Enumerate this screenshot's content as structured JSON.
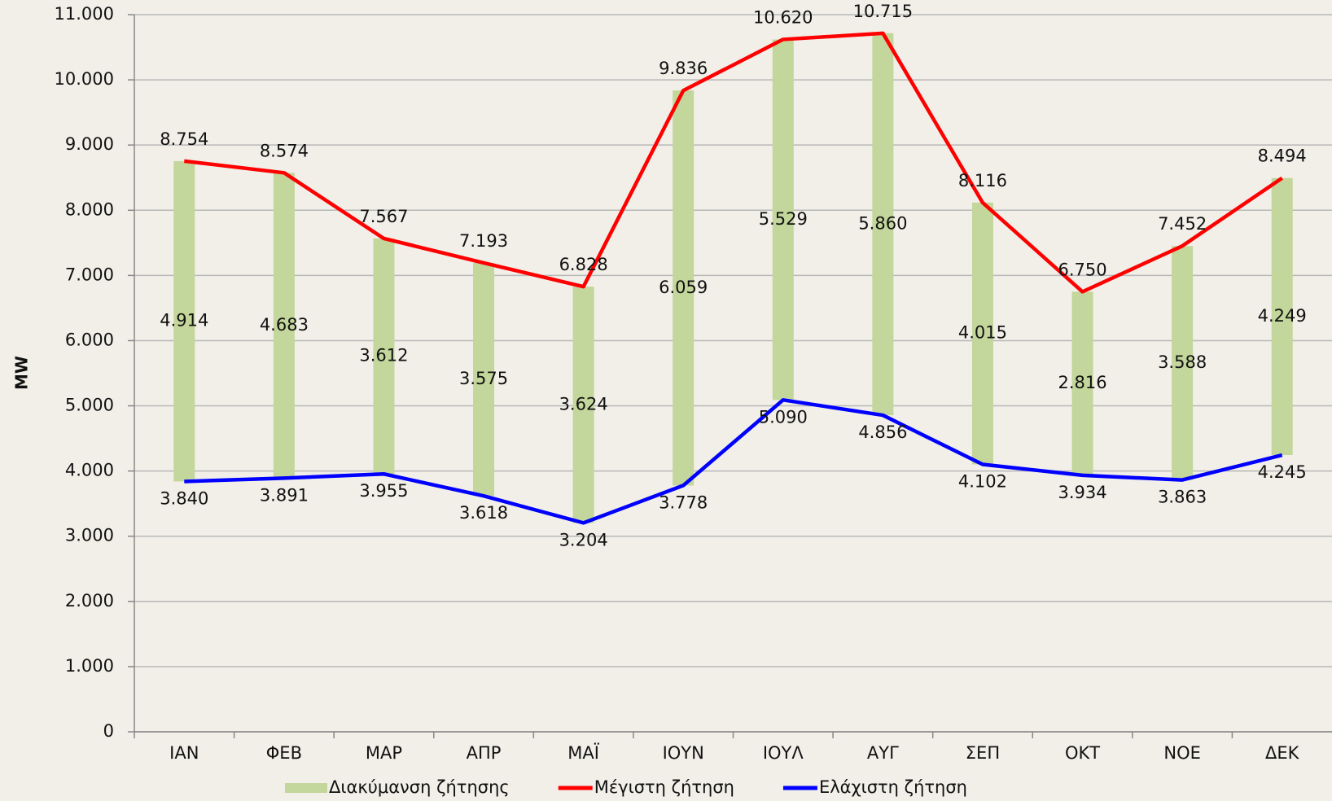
{
  "chart_data": {
    "type": "combo",
    "y_label": "MW",
    "categories": [
      "ΙΑΝ",
      "ΦΕΒ",
      "ΜΑΡ",
      "ΑΠΡ",
      "ΜΑΪ",
      "ΙΟΥΝ",
      "ΙΟΥΛ",
      "ΑΥΓ",
      "ΣΕΠ",
      "ΟΚΤ",
      "ΝΟΕ",
      "ΔΕΚ"
    ],
    "ylim": [
      0,
      11000
    ],
    "yticks": [
      0,
      {
        "value": 1000,
        "label": "1.000"
      },
      {
        "value": 2000,
        "label": "2.000"
      },
      {
        "value": 3000,
        "label": "3.000"
      },
      {
        "value": 4000,
        "label": "4.000"
      },
      {
        "value": 5000,
        "label": "5.000"
      },
      {
        "value": 6000,
        "label": "6.000"
      },
      {
        "value": 7000,
        "label": "7.000"
      },
      {
        "value": 8000,
        "label": "8.000"
      },
      {
        "value": 9000,
        "label": "9.000"
      },
      {
        "value": 10000,
        "label": "10.000"
      },
      {
        "value": 11000,
        "label": "11.000"
      }
    ],
    "grid": true,
    "series": [
      {
        "name": "Διακύμανση ζήτησης",
        "type": "bar",
        "color": "#c3d69b",
        "values": [
          4914,
          4683,
          3612,
          3575,
          3624,
          6059,
          5529,
          5860,
          4015,
          2816,
          3588,
          4249
        ],
        "value_labels": [
          "4.914",
          "4.683",
          "3.612",
          "3.575",
          "3.624",
          "6.059",
          "5.529",
          "5.860",
          "4.015",
          "2.816",
          "3.588",
          "4.249"
        ]
      },
      {
        "name": "Μέγιστη ζήτηση",
        "type": "line",
        "color": "#ff0000",
        "values": [
          8754,
          8574,
          7567,
          7193,
          6828,
          9836,
          10620,
          10715,
          8116,
          6750,
          7452,
          8494
        ],
        "value_labels": [
          "8.754",
          "8.574",
          "7.567",
          "7.193",
          "6.828",
          "9.836",
          "10.620",
          "10.715",
          "8.116",
          "6.750",
          "7.452",
          "8.494"
        ]
      },
      {
        "name": "Ελάχιστη ζήτηση",
        "type": "line",
        "color": "#0000ff",
        "values": [
          3840,
          3891,
          3955,
          3618,
          3204,
          3778,
          5090,
          4856,
          4102,
          3934,
          3863,
          4245
        ],
        "value_labels": [
          "3.840",
          "3.891",
          "3.955",
          "3.618",
          "3.204",
          "3.778",
          "5.090",
          "4.856",
          "4.102",
          "3.934",
          "3.863",
          "4.245"
        ]
      }
    ]
  }
}
